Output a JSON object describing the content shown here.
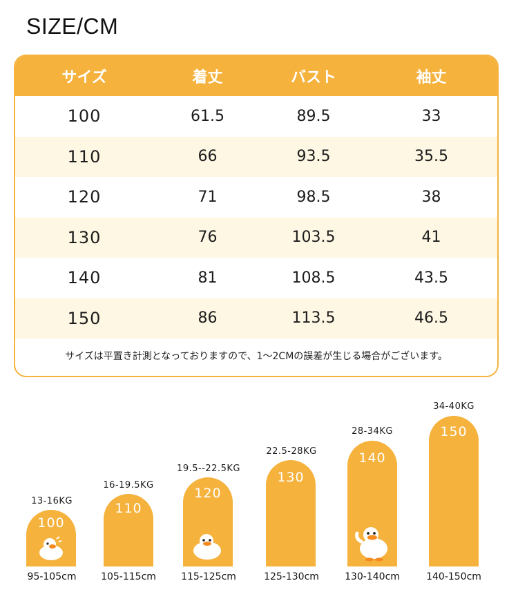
{
  "title": "SIZE/CM",
  "table": {
    "headers": [
      "サイズ",
      "着丈",
      "バスト",
      "袖丈"
    ],
    "rows": [
      [
        "100",
        "61.5",
        "89.5",
        "33"
      ],
      [
        "110",
        "66",
        "93.5",
        "35.5"
      ],
      [
        "120",
        "71",
        "98.5",
        "38"
      ],
      [
        "130",
        "76",
        "103.5",
        "41"
      ],
      [
        "140",
        "81",
        "108.5",
        "43.5"
      ],
      [
        "150",
        "86",
        "113.5",
        "46.5"
      ]
    ],
    "note": "サイズは平置き計測となっておりますので、1～2CMの誤差が生じる場合がございます。"
  },
  "colors": {
    "accent": "#f5b23d",
    "row_alt": "#fdf7e3"
  },
  "size_chart": [
    {
      "size": "100",
      "weight": "13-16KG",
      "height": "95-105cm"
    },
    {
      "size": "110",
      "weight": "16-19.5KG",
      "height": "105-115cm"
    },
    {
      "size": "120",
      "weight": "19.5--22.5KG",
      "height": "115-125cm"
    },
    {
      "size": "130",
      "weight": "22.5-28KG",
      "height": "125-130cm"
    },
    {
      "size": "140",
      "weight": "28-34KG",
      "height": "130-140cm"
    },
    {
      "size": "150",
      "weight": "34-40KG",
      "height": "140-150cm"
    }
  ]
}
